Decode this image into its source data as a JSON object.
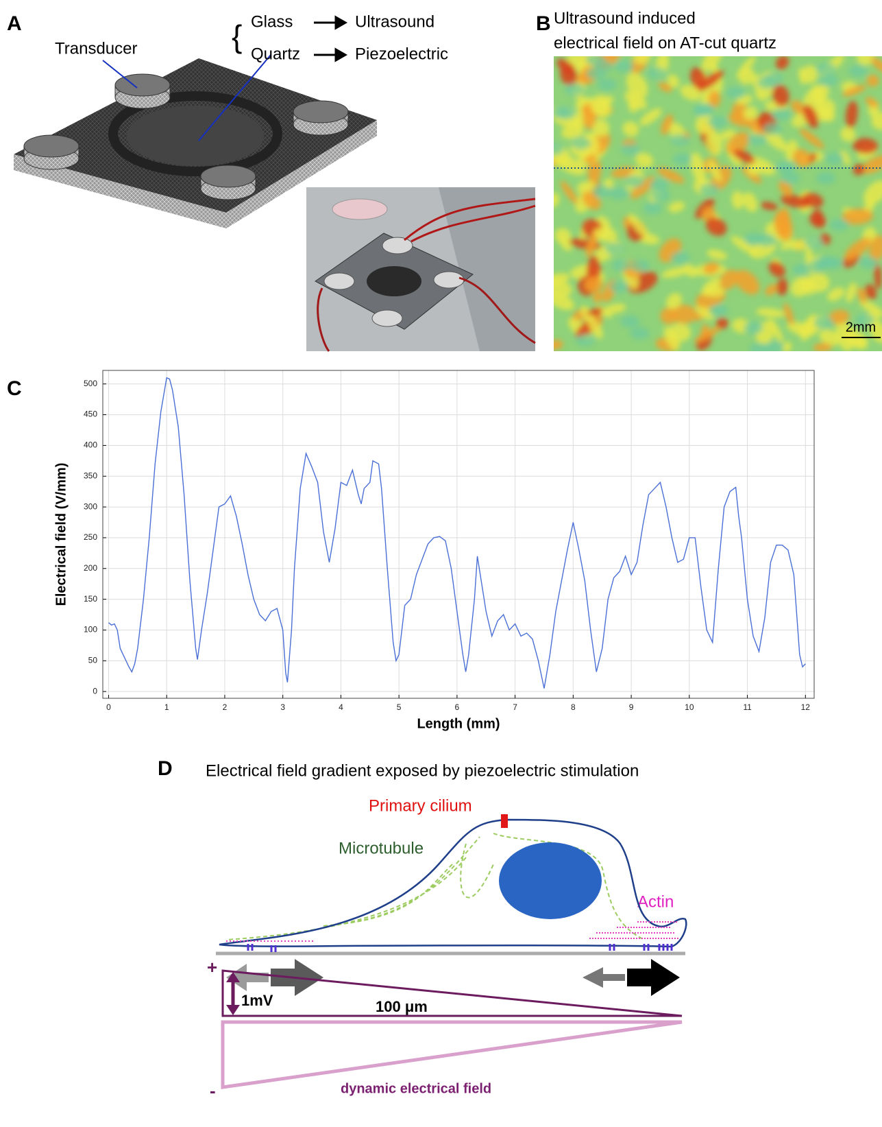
{
  "panel_a": {
    "label": "A",
    "transducer": "Transducer",
    "glass": "Glass",
    "quartz": "Quartz",
    "ultrasound": "Ultrasound",
    "piezoelectric": "Piezoelectric"
  },
  "panel_b": {
    "label": "B",
    "title_line1": "Ultrasound induced",
    "title_line2": "electrical field on AT-cut quartz",
    "scale_bar": "2mm"
  },
  "panel_c": {
    "label": "C"
  },
  "chart_data": {
    "type": "line",
    "xlabel": "Length (mm)",
    "ylabel": "Electrical field (V/mm)",
    "x": [
      0,
      0.05,
      0.1,
      0.15,
      0.2,
      0.3,
      0.35,
      0.4,
      0.45,
      0.5,
      0.6,
      0.7,
      0.8,
      0.9,
      1.0,
      1.05,
      1.1,
      1.2,
      1.3,
      1.4,
      1.5,
      1.53,
      1.6,
      1.7,
      1.8,
      1.9,
      2.0,
      2.1,
      2.2,
      2.3,
      2.4,
      2.5,
      2.6,
      2.7,
      2.8,
      2.9,
      3.0,
      3.05,
      3.08,
      3.15,
      3.2,
      3.3,
      3.4,
      3.5,
      3.6,
      3.7,
      3.8,
      3.9,
      4.0,
      4.1,
      4.2,
      4.3,
      4.35,
      4.4,
      4.5,
      4.55,
      4.65,
      4.7,
      4.8,
      4.9,
      4.95,
      5.0,
      5.1,
      5.2,
      5.3,
      5.5,
      5.6,
      5.7,
      5.8,
      5.9,
      6.0,
      6.1,
      6.15,
      6.2,
      6.3,
      6.35,
      6.4,
      6.5,
      6.6,
      6.7,
      6.8,
      6.9,
      7.0,
      7.1,
      7.2,
      7.3,
      7.4,
      7.5,
      7.6,
      7.7,
      7.8,
      7.9,
      8.0,
      8.1,
      8.2,
      8.3,
      8.4,
      8.5,
      8.6,
      8.7,
      8.8,
      8.9,
      9.0,
      9.1,
      9.2,
      9.3,
      9.4,
      9.5,
      9.6,
      9.7,
      9.8,
      9.9,
      10.0,
      10.1,
      10.2,
      10.3,
      10.4,
      10.5,
      10.6,
      10.7,
      10.8,
      10.85,
      10.9,
      11.0,
      11.1,
      11.2,
      11.3,
      11.4,
      11.5,
      11.6,
      11.7,
      11.8,
      11.9,
      11.95,
      12.0
    ],
    "series": [
      {
        "color": "#4a6fd6",
        "values": [
          112,
          108,
          110,
          100,
          70,
          50,
          40,
          32,
          45,
          70,
          150,
          250,
          370,
          455,
          510,
          508,
          490,
          430,
          320,
          180,
          70,
          52,
          100,
          160,
          230,
          300,
          305,
          318,
          285,
          240,
          190,
          150,
          125,
          115,
          130,
          135,
          100,
          30,
          15,
          100,
          200,
          330,
          387,
          365,
          340,
          260,
          210,
          265,
          340,
          335,
          360,
          320,
          305,
          330,
          340,
          375,
          370,
          330,
          200,
          80,
          50,
          60,
          140,
          150,
          190,
          240,
          250,
          252,
          245,
          200,
          130,
          60,
          32,
          60,
          150,
          220,
          190,
          130,
          90,
          115,
          125,
          100,
          110,
          90,
          95,
          85,
          50,
          5,
          60,
          130,
          180,
          230,
          275,
          230,
          180,
          100,
          32,
          70,
          150,
          185,
          195,
          220,
          190,
          210,
          270,
          320,
          330,
          340,
          300,
          250,
          210,
          215,
          250,
          250,
          170,
          100,
          80,
          200,
          300,
          325,
          332,
          285,
          250,
          150,
          90,
          65,
          120,
          210,
          238,
          238,
          230,
          190,
          60,
          40,
          45
        ]
      }
    ],
    "xlim": [
      -0.1,
      12.15
    ],
    "ylim": [
      -11,
      522
    ],
    "xticks": [
      0,
      1,
      2,
      3,
      4,
      5,
      6,
      7,
      8,
      9,
      10,
      11,
      12
    ],
    "yticks": [
      0,
      50,
      100,
      150,
      200,
      250,
      300,
      350,
      400,
      450,
      500
    ],
    "grid": true
  },
  "panel_d": {
    "label": "D",
    "title": "Electrical field gradient exposed by piezoelectric stimulation",
    "cilium": "Primary cilium",
    "microtubule": "Microtubule",
    "actin": "Actin",
    "plus": "+",
    "voltage": "1mV",
    "length": "100 μm",
    "minus": "-",
    "field": "dynamic electrical field"
  }
}
